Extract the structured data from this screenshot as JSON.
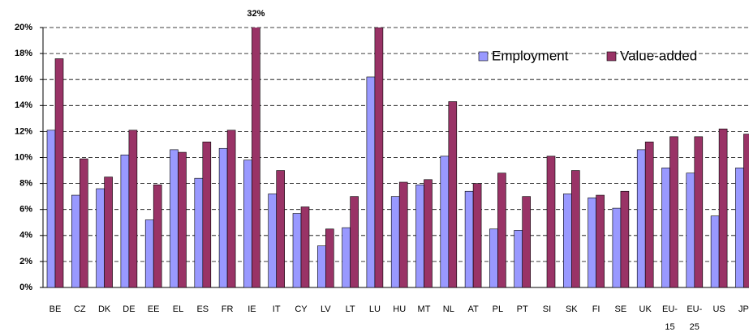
{
  "chart_data": {
    "type": "bar",
    "categories": [
      "BE",
      "CZ",
      "DK",
      "DE",
      "EE",
      "EL",
      "ES",
      "FR",
      "IE",
      "IT",
      "CY",
      "LV",
      "LT",
      "LU",
      "HU",
      "MT",
      "NL",
      "AT",
      "PL",
      "PT",
      "SI",
      "SK",
      "FI",
      "SE",
      "UK",
      "EU-15",
      "EU-25",
      "US",
      "JP"
    ],
    "series": [
      {
        "name": "Employment",
        "color": "#9999ff",
        "values": [
          12.1,
          7.1,
          7.6,
          10.2,
          5.2,
          10.6,
          8.4,
          10.7,
          9.8,
          7.2,
          5.7,
          3.2,
          4.6,
          16.2,
          7.0,
          7.9,
          10.1,
          7.4,
          4.5,
          4.4,
          null,
          7.2,
          6.9,
          6.1,
          10.6,
          9.2,
          8.8,
          5.5,
          9.2
        ]
      },
      {
        "name": "Value-added",
        "color": "#993366",
        "values": [
          17.6,
          9.9,
          8.5,
          12.1,
          7.9,
          10.4,
          11.2,
          12.1,
          32,
          9.0,
          6.2,
          4.5,
          7.0,
          20,
          8.1,
          8.3,
          14.3,
          8.0,
          8.8,
          7.0,
          10.1,
          9.0,
          7.1,
          7.4,
          11.2,
          11.6,
          11.6,
          12.2,
          11.8
        ],
        "value_labels": [
          null,
          null,
          null,
          null,
          null,
          null,
          null,
          null,
          "32%",
          null,
          null,
          null,
          null,
          null,
          null,
          null,
          null,
          null,
          null,
          null,
          null,
          null,
          null,
          null,
          null,
          null,
          null,
          null,
          null
        ]
      }
    ],
    "ylim": [
      0,
      20
    ],
    "yticks": [
      {
        "value": 0,
        "label": "0%"
      },
      {
        "value": 2,
        "label": "2%"
      },
      {
        "value": 4,
        "label": "4%"
      },
      {
        "value": 6,
        "label": "6%"
      },
      {
        "value": 8,
        "label": "8%"
      },
      {
        "value": 10,
        "label": "10%"
      },
      {
        "value": 12,
        "label": "12%"
      },
      {
        "value": 14,
        "label": "14%"
      },
      {
        "value": 16,
        "label": "16%"
      },
      {
        "value": 18,
        "label": "18%"
      },
      {
        "value": 20,
        "label": "20%"
      }
    ],
    "grid": true,
    "legend": "top-right"
  }
}
